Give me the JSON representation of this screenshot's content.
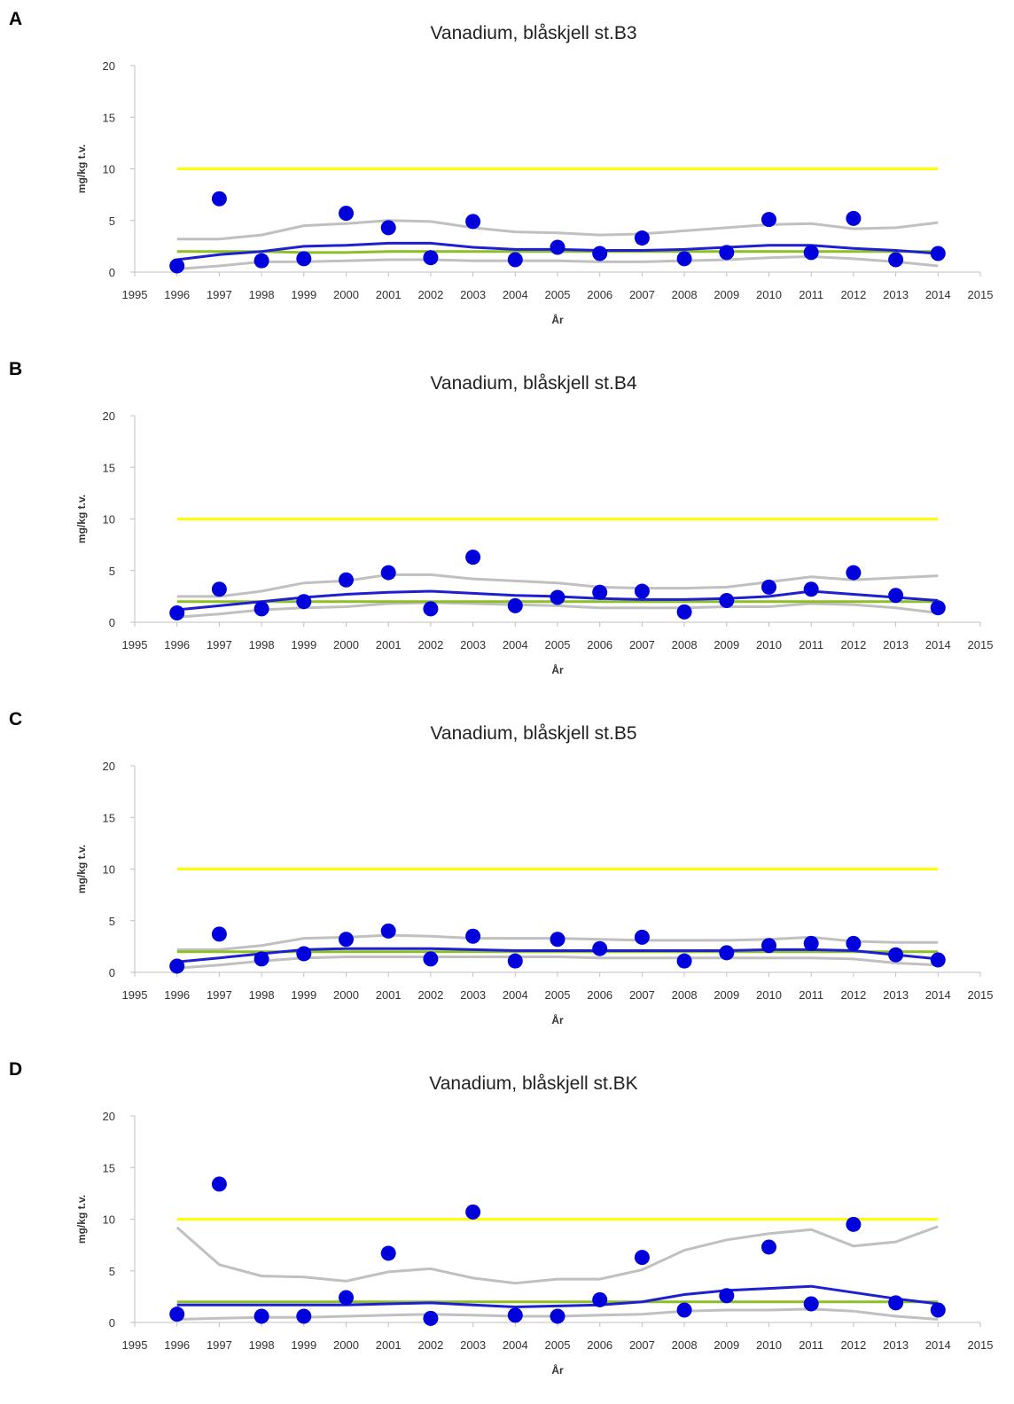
{
  "panels": [
    {
      "letter": "A"
    },
    {
      "letter": "B"
    },
    {
      "letter": "C"
    },
    {
      "letter": "D"
    }
  ],
  "colors": {
    "points": "#0000dd",
    "trend": "#1f1fd2",
    "confidence": "#c0c0c0",
    "green": "#8cbf26",
    "limit": "#ffff00",
    "axis": "#bfbfbf",
    "text": "#333333"
  },
  "chart_data": [
    {
      "type": "scatter",
      "title": "Vanadium, blåskjell st.B3",
      "xlabel": "År",
      "ylabel": "mg/kg t.v.",
      "xlim": [
        1995,
        2015
      ],
      "ylim": [
        0,
        20
      ],
      "xticks": [
        "1995",
        "1996",
        "1997",
        "1998",
        "1999",
        "2000",
        "2001",
        "2002",
        "2003",
        "2004",
        "2005",
        "2006",
        "2007",
        "2008",
        "2009",
        "2010",
        "2011",
        "2012",
        "2013",
        "2014",
        "2015"
      ],
      "yticks": [
        "0",
        "5",
        "10",
        "15",
        "20"
      ],
      "grid": false,
      "legend": "none",
      "limit_line": {
        "x": [
          1996,
          2014
        ],
        "y": 10
      },
      "x": [
        1996,
        1997,
        1998,
        1999,
        2000,
        2001,
        2002,
        2003,
        2004,
        2005,
        2006,
        2007,
        2008,
        2009,
        2010,
        2011,
        2012,
        2013,
        2014
      ],
      "points": [
        0.6,
        7.1,
        1.1,
        1.3,
        5.7,
        4.3,
        1.4,
        4.9,
        1.2,
        2.4,
        1.8,
        3.3,
        1.3,
        1.9,
        5.1,
        1.9,
        5.2,
        1.2,
        1.8
      ],
      "trend": [
        1.2,
        1.7,
        2.0,
        2.5,
        2.6,
        2.8,
        2.8,
        2.4,
        2.2,
        2.2,
        2.1,
        2.1,
        2.2,
        2.4,
        2.6,
        2.6,
        2.3,
        2.1,
        1.8
      ],
      "upper": [
        3.2,
        3.2,
        3.6,
        4.5,
        4.7,
        5.0,
        4.9,
        4.3,
        3.9,
        3.8,
        3.6,
        3.7,
        4.0,
        4.3,
        4.6,
        4.7,
        4.2,
        4.3,
        4.8
      ],
      "lower": [
        0.3,
        0.6,
        1.0,
        1.0,
        1.1,
        1.2,
        1.2,
        1.1,
        1.1,
        1.1,
        1.0,
        1.0,
        1.1,
        1.2,
        1.4,
        1.5,
        1.3,
        1.0,
        0.6
      ],
      "green": [
        2.0,
        2.0,
        2.0,
        1.9,
        1.9,
        2.0,
        2.0,
        2.0,
        2.0,
        2.0,
        2.0,
        2.0,
        2.0,
        2.0,
        2.0,
        2.0,
        2.0,
        2.0,
        2.0
      ]
    },
    {
      "type": "scatter",
      "title": "Vanadium, blåskjell st.B4",
      "xlabel": "År",
      "ylabel": "mg/kg t.v.",
      "xlim": [
        1995,
        2015
      ],
      "ylim": [
        0,
        20
      ],
      "xticks": [
        "1995",
        "1996",
        "1997",
        "1998",
        "1999",
        "2000",
        "2001",
        "2002",
        "2003",
        "2004",
        "2005",
        "2006",
        "2007",
        "2008",
        "2009",
        "2010",
        "2011",
        "2012",
        "2013",
        "2014",
        "2015"
      ],
      "yticks": [
        "0",
        "5",
        "10",
        "15",
        "20"
      ],
      "grid": false,
      "legend": "none",
      "limit_line": {
        "x": [
          1996,
          2014
        ],
        "y": 10
      },
      "x": [
        1996,
        1997,
        1998,
        1999,
        2000,
        2001,
        2002,
        2003,
        2004,
        2005,
        2006,
        2007,
        2008,
        2009,
        2010,
        2011,
        2012,
        2013,
        2014
      ],
      "points": [
        0.9,
        3.2,
        1.3,
        2.0,
        4.1,
        4.8,
        1.3,
        6.3,
        1.6,
        2.4,
        2.9,
        3.0,
        1.0,
        2.1,
        3.4,
        3.2,
        4.8,
        2.6,
        1.4
      ],
      "trend": [
        1.2,
        1.6,
        2.0,
        2.4,
        2.7,
        2.9,
        3.0,
        2.8,
        2.6,
        2.5,
        2.3,
        2.2,
        2.2,
        2.3,
        2.5,
        3.0,
        2.7,
        2.4,
        2.1
      ],
      "upper": [
        2.5,
        2.5,
        3.0,
        3.8,
        4.0,
        4.6,
        4.6,
        4.2,
        4.0,
        3.8,
        3.4,
        3.3,
        3.3,
        3.4,
        3.9,
        4.4,
        4.1,
        4.3,
        4.5
      ],
      "lower": [
        0.5,
        0.8,
        1.2,
        1.4,
        1.5,
        1.8,
        1.9,
        1.8,
        1.7,
        1.6,
        1.4,
        1.4,
        1.4,
        1.5,
        1.5,
        1.8,
        1.7,
        1.4,
        0.9
      ],
      "green": [
        2.0,
        2.0,
        2.0,
        2.0,
        2.0,
        2.0,
        2.0,
        2.0,
        2.0,
        2.0,
        2.0,
        2.0,
        2.0,
        2.0,
        2.0,
        2.0,
        2.0,
        2.0,
        2.0
      ]
    },
    {
      "type": "scatter",
      "title": "Vanadium, blåskjell st.B5",
      "xlabel": "År",
      "ylabel": "mg/kg t.v.",
      "xlim": [
        1995,
        2015
      ],
      "ylim": [
        0,
        20
      ],
      "xticks": [
        "1995",
        "1996",
        "1997",
        "1998",
        "1999",
        "2000",
        "2001",
        "2002",
        "2003",
        "2004",
        "2005",
        "2006",
        "2007",
        "2008",
        "2009",
        "2010",
        "2011",
        "2012",
        "2013",
        "2014",
        "2015"
      ],
      "yticks": [
        "0",
        "5",
        "10",
        "15",
        "20"
      ],
      "grid": false,
      "legend": "none",
      "limit_line": {
        "x": [
          1996,
          2014
        ],
        "y": 10
      },
      "x": [
        1996,
        1997,
        1998,
        1999,
        2000,
        2001,
        2002,
        2003,
        2004,
        2005,
        2006,
        2007,
        2008,
        2009,
        2010,
        2011,
        2012,
        2013,
        2014
      ],
      "points": [
        0.6,
        3.7,
        1.3,
        1.8,
        3.2,
        4.0,
        1.3,
        3.5,
        1.1,
        3.2,
        2.3,
        3.4,
        1.1,
        1.9,
        2.6,
        2.8,
        2.8,
        1.7,
        1.2
      ],
      "trend": [
        1.0,
        1.4,
        1.8,
        2.2,
        2.3,
        2.3,
        2.3,
        2.2,
        2.1,
        2.1,
        2.1,
        2.1,
        2.1,
        2.1,
        2.2,
        2.2,
        2.1,
        1.7,
        1.3
      ],
      "upper": [
        2.2,
        2.2,
        2.6,
        3.3,
        3.4,
        3.6,
        3.5,
        3.3,
        3.3,
        3.3,
        3.2,
        3.1,
        3.1,
        3.1,
        3.2,
        3.4,
        3.0,
        2.9,
        2.9
      ],
      "lower": [
        0.4,
        0.7,
        1.1,
        1.4,
        1.5,
        1.5,
        1.5,
        1.5,
        1.5,
        1.5,
        1.4,
        1.4,
        1.4,
        1.4,
        1.4,
        1.4,
        1.3,
        0.9,
        0.7
      ],
      "green": [
        2.0,
        2.0,
        2.0,
        2.0,
        2.0,
        2.0,
        2.0,
        2.0,
        2.0,
        2.0,
        2.0,
        2.0,
        2.0,
        2.0,
        2.0,
        2.0,
        2.0,
        2.0,
        2.0
      ]
    },
    {
      "type": "scatter",
      "title": "Vanadium, blåskjell st.BK",
      "xlabel": "År",
      "ylabel": "mg/kg t.v.",
      "xlim": [
        1995,
        2015
      ],
      "ylim": [
        0,
        20
      ],
      "xticks": [
        "1995",
        "1996",
        "1997",
        "1998",
        "1999",
        "2000",
        "2001",
        "2002",
        "2003",
        "2004",
        "2005",
        "2006",
        "2007",
        "2008",
        "2009",
        "2010",
        "2011",
        "2012",
        "2013",
        "2014",
        "2015"
      ],
      "yticks": [
        "0",
        "5",
        "10",
        "15",
        "20"
      ],
      "grid": false,
      "legend": "none",
      "limit_line": {
        "x": [
          1996,
          2014
        ],
        "y": 10
      },
      "x": [
        1996,
        1997,
        1998,
        1999,
        2000,
        2001,
        2002,
        2003,
        2004,
        2005,
        2006,
        2007,
        2008,
        2009,
        2010,
        2011,
        2012,
        2013,
        2014
      ],
      "points": [
        0.8,
        13.4,
        0.6,
        0.6,
        2.4,
        6.7,
        0.4,
        10.7,
        0.7,
        0.6,
        2.2,
        6.3,
        1.2,
        2.6,
        7.3,
        1.8,
        9.5,
        1.9,
        1.2
      ],
      "trend": [
        1.7,
        1.7,
        1.7,
        1.7,
        1.7,
        1.8,
        1.9,
        1.7,
        1.5,
        1.6,
        1.7,
        2.0,
        2.7,
        3.1,
        3.3,
        3.5,
        2.9,
        2.3,
        1.8
      ],
      "upper": [
        9.2,
        5.6,
        4.5,
        4.4,
        4.0,
        4.9,
        5.2,
        4.3,
        3.8,
        4.2,
        4.2,
        5.1,
        7.0,
        8.0,
        8.6,
        9.0,
        7.4,
        7.8,
        9.3
      ],
      "lower": [
        0.3,
        0.4,
        0.5,
        0.5,
        0.6,
        0.7,
        0.8,
        0.7,
        0.6,
        0.6,
        0.7,
        0.8,
        1.1,
        1.2,
        1.2,
        1.3,
        1.1,
        0.6,
        0.3
      ],
      "green": [
        2.0,
        2.0,
        2.0,
        2.0,
        2.0,
        2.0,
        2.0,
        2.0,
        2.0,
        2.0,
        2.0,
        2.0,
        2.0,
        2.0,
        2.0,
        2.0,
        2.0,
        2.0,
        2.0
      ]
    }
  ]
}
